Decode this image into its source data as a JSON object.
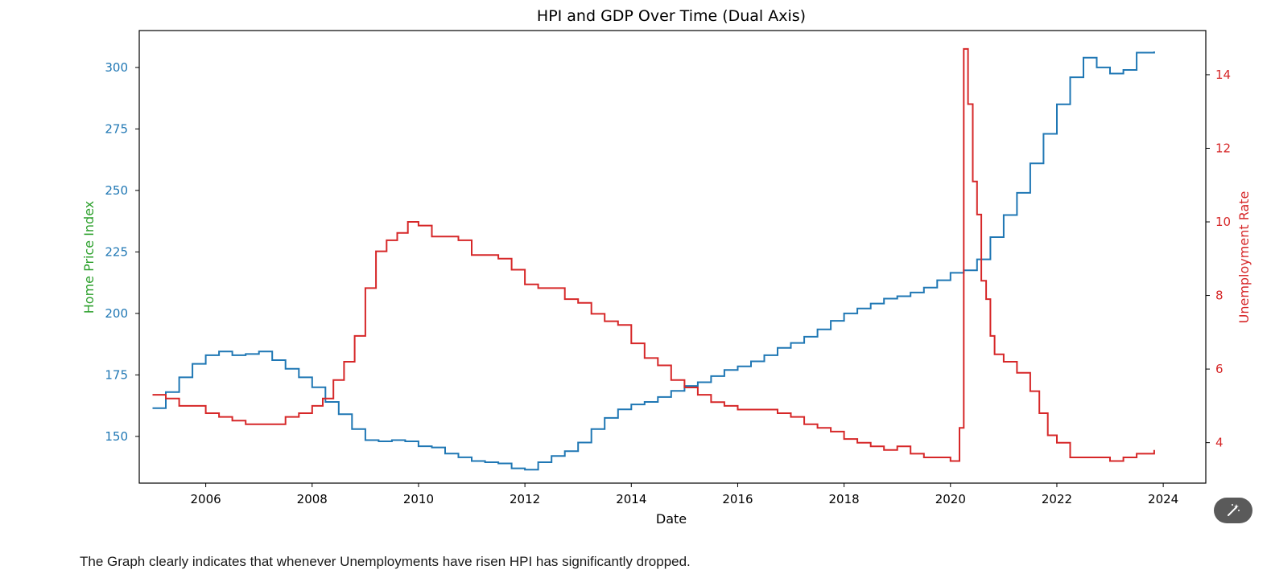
{
  "caption": "The Graph clearly indicates that whenever Unemployments have risen HPI has significantly dropped.",
  "magic_button": {
    "icon": "magic-wand-icon"
  },
  "chart_data": {
    "type": "line",
    "title": "HPI and GDP Over Time (Dual Axis)",
    "xlabel": "Date",
    "x_ticks": [
      "2006",
      "2008",
      "2010",
      "2012",
      "2014",
      "2016",
      "2018",
      "2020",
      "2022",
      "2024"
    ],
    "xlim": [
      2004.75,
      2024.8
    ],
    "step": "post",
    "left_axis": {
      "label": "Home Price Index",
      "label_color": "#2ca02c",
      "tick_color": "#1f77b4",
      "ticks": [
        "150",
        "175",
        "200",
        "225",
        "250",
        "275",
        "300"
      ],
      "ylim": [
        131,
        315
      ]
    },
    "right_axis": {
      "label": "Unemployment Rate",
      "label_color": "#d62728",
      "tick_color": "#d62728",
      "ticks": [
        "4",
        "6",
        "8",
        "10",
        "12",
        "14"
      ],
      "ylim": [
        2.9,
        15.2
      ]
    },
    "series": [
      {
        "axis": "left",
        "color": "#1f77b4",
        "x": [
          2005.0,
          2005.25,
          2005.5,
          2005.75,
          2006.0,
          2006.25,
          2006.5,
          2006.75,
          2007.0,
          2007.25,
          2007.5,
          2007.75,
          2008.0,
          2008.25,
          2008.5,
          2008.75,
          2009.0,
          2009.25,
          2009.5,
          2009.75,
          2010.0,
          2010.25,
          2010.5,
          2010.75,
          2011.0,
          2011.25,
          2011.5,
          2011.75,
          2012.0,
          2012.25,
          2012.5,
          2012.75,
          2013.0,
          2013.25,
          2013.5,
          2013.75,
          2014.0,
          2014.25,
          2014.5,
          2014.75,
          2015.0,
          2015.25,
          2015.5,
          2015.75,
          2016.0,
          2016.25,
          2016.5,
          2016.75,
          2017.0,
          2017.25,
          2017.5,
          2017.75,
          2018.0,
          2018.25,
          2018.5,
          2018.75,
          2019.0,
          2019.25,
          2019.5,
          2019.75,
          2020.0,
          2020.25,
          2020.5,
          2020.75,
          2021.0,
          2021.25,
          2021.5,
          2021.75,
          2022.0,
          2022.25,
          2022.5,
          2022.75,
          2023.0,
          2023.25,
          2023.5,
          2023.83
        ],
        "values": [
          161.5,
          168,
          174,
          179.5,
          183,
          184.5,
          183,
          183.5,
          184.5,
          181,
          177.5,
          174,
          170,
          164,
          159,
          153,
          148.5,
          148,
          148.5,
          148,
          146,
          145.5,
          143,
          141.5,
          140,
          139.5,
          139,
          137,
          136.5,
          139.5,
          142,
          144,
          147.5,
          153,
          157.5,
          161,
          163,
          164,
          166,
          168.5,
          170.5,
          172,
          174.5,
          177,
          178.5,
          180.5,
          183,
          186,
          188,
          190.5,
          193.5,
          197,
          200,
          202,
          204,
          206,
          207,
          208.5,
          210.5,
          213.5,
          216.5,
          217.5,
          222,
          231,
          240,
          249,
          261,
          273,
          285,
          296,
          304,
          300,
          297.5,
          299,
          306,
          306.5
        ]
      },
      {
        "axis": "right",
        "color": "#d62728",
        "x": [
          2005.0,
          2005.25,
          2005.5,
          2005.75,
          2006.0,
          2006.25,
          2006.5,
          2006.75,
          2007.0,
          2007.25,
          2007.5,
          2007.75,
          2008.0,
          2008.2,
          2008.4,
          2008.6,
          2008.8,
          2009.0,
          2009.2,
          2009.4,
          2009.6,
          2009.8,
          2010.0,
          2010.25,
          2010.5,
          2010.75,
          2011.0,
          2011.25,
          2011.5,
          2011.75,
          2012.0,
          2012.25,
          2012.5,
          2012.75,
          2013.0,
          2013.25,
          2013.5,
          2013.75,
          2014.0,
          2014.25,
          2014.5,
          2014.75,
          2015.0,
          2015.25,
          2015.5,
          2015.75,
          2016.0,
          2016.25,
          2016.5,
          2016.75,
          2017.0,
          2017.25,
          2017.5,
          2017.75,
          2018.0,
          2018.25,
          2018.5,
          2018.75,
          2019.0,
          2019.25,
          2019.5,
          2019.75,
          2020.0,
          2020.17,
          2020.25,
          2020.33,
          2020.42,
          2020.5,
          2020.58,
          2020.67,
          2020.75,
          2020.83,
          2021.0,
          2021.25,
          2021.5,
          2021.67,
          2021.83,
          2022.0,
          2022.25,
          2022.5,
          2022.75,
          2023.0,
          2023.25,
          2023.5,
          2023.83
        ],
        "values": [
          5.3,
          5.2,
          5.0,
          5.0,
          4.8,
          4.7,
          4.6,
          4.5,
          4.5,
          4.5,
          4.7,
          4.8,
          5.0,
          5.2,
          5.7,
          6.2,
          6.9,
          8.2,
          9.2,
          9.5,
          9.7,
          10.0,
          9.9,
          9.6,
          9.6,
          9.5,
          9.1,
          9.1,
          9.0,
          8.7,
          8.3,
          8.2,
          8.2,
          7.9,
          7.8,
          7.5,
          7.3,
          7.2,
          6.7,
          6.3,
          6.1,
          5.7,
          5.5,
          5.3,
          5.1,
          5.0,
          4.9,
          4.9,
          4.9,
          4.8,
          4.7,
          4.5,
          4.4,
          4.3,
          4.1,
          4.0,
          3.9,
          3.8,
          3.9,
          3.7,
          3.6,
          3.6,
          3.5,
          4.4,
          14.7,
          13.2,
          11.1,
          10.2,
          8.4,
          7.9,
          6.9,
          6.4,
          6.2,
          5.9,
          5.4,
          4.8,
          4.2,
          4.0,
          3.6,
          3.6,
          3.6,
          3.5,
          3.6,
          3.7,
          3.8
        ]
      }
    ]
  }
}
